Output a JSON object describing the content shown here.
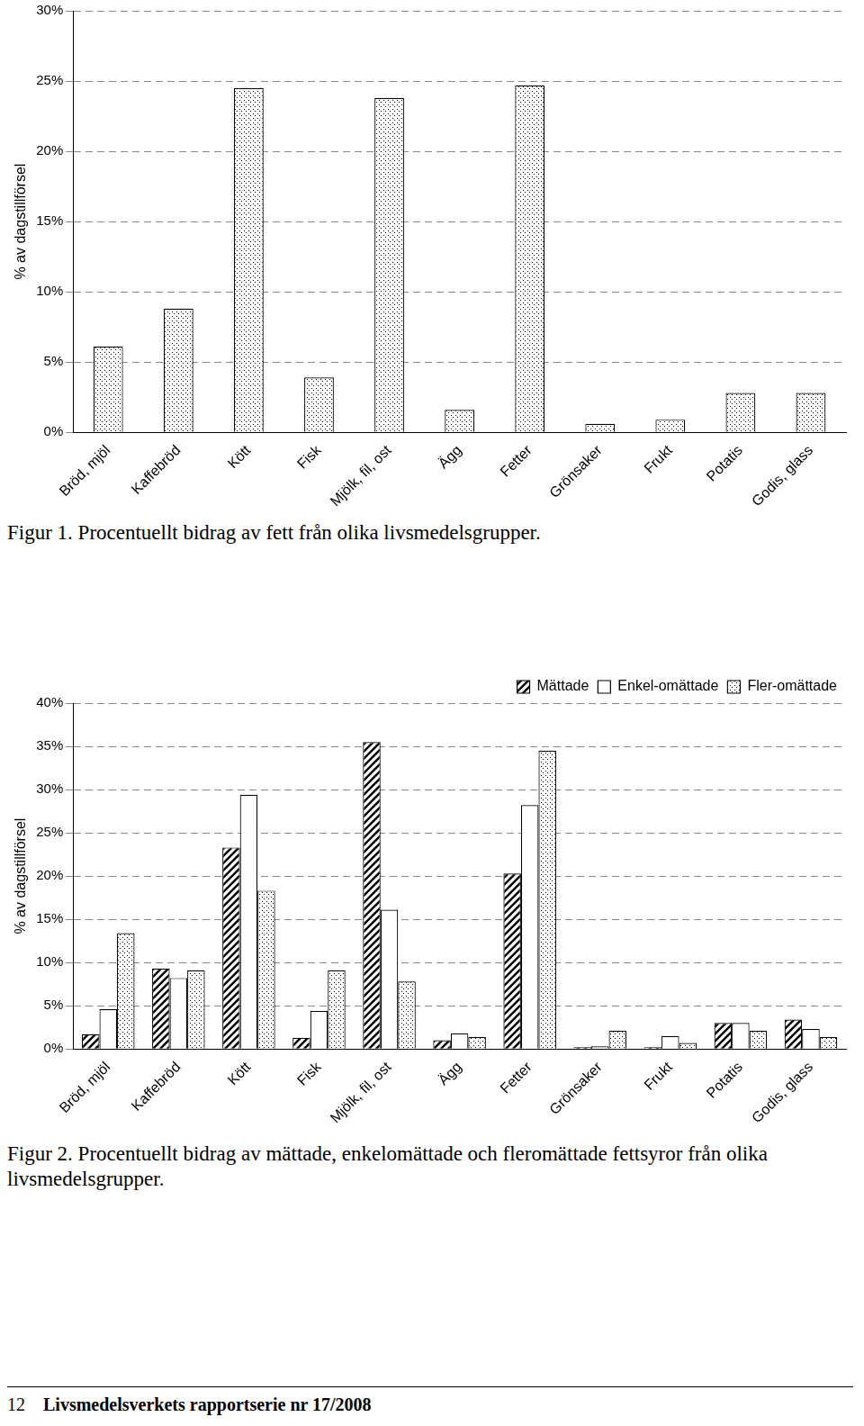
{
  "chart_data": [
    {
      "type": "bar",
      "title": "Figur 1. Procentuellt bidrag av fett från olika livsmedelsgrupper.",
      "y_label": "% av dagstillförsel",
      "categories": [
        "Bröd, mjöl",
        "Kaffebröd",
        "Kött",
        "Fisk",
        "Mjölk, fil, ost",
        "Ägg",
        "Fetter",
        "Grönsaker",
        "Frukt",
        "Potatis",
        "Godis, glass"
      ],
      "values": [
        6.1,
        8.8,
        24.5,
        3.9,
        23.8,
        1.6,
        24.7,
        0.6,
        0.9,
        2.8,
        2.8
      ],
      "color": "#000000",
      "ylim": [
        0,
        30
      ],
      "yticks": [
        {
          "value": 0,
          "label": "0%"
        },
        {
          "value": 5,
          "label": "5%"
        },
        {
          "value": 10,
          "label": "10%"
        },
        {
          "value": 15,
          "label": "15%"
        },
        {
          "value": 20,
          "label": "20%"
        },
        {
          "value": 25,
          "label": "25%"
        },
        {
          "value": 30,
          "label": "30%"
        }
      ],
      "grid": true
    },
    {
      "type": "bar",
      "title": "Figur 2. Procentuellt bidrag av mättade, enkelomättade och fleromättade fettsyror från olika livsmedelsgrupper.",
      "y_label": "% av dagstillförsel",
      "categories": [
        "Bröd, mjöl",
        "Kaffebröd",
        "Kött",
        "Fisk",
        "Mjölk, fil, ost",
        "Ägg",
        "Fetter",
        "Grönsaker",
        "Frukt",
        "Potatis",
        "Godis, glass"
      ],
      "series": [
        {
          "name": "Mättade",
          "color": "#000000",
          "values": [
            1.7,
            9.3,
            23.3,
            1.3,
            35.5,
            1.0,
            20.3,
            0.2,
            0.2,
            3.0,
            3.4
          ]
        },
        {
          "name": "Enkel-omättade",
          "color": "#ffffff",
          "values": [
            4.6,
            8.2,
            29.4,
            4.4,
            16.1,
            1.8,
            28.2,
            0.3,
            1.5,
            3.0,
            2.3
          ]
        },
        {
          "name": "Fler-omättade",
          "color": "#000000",
          "values": [
            13.4,
            9.1,
            18.3,
            9.1,
            7.8,
            1.4,
            34.5,
            2.1,
            0.7,
            2.1,
            1.4
          ]
        }
      ],
      "ylim": [
        0,
        40
      ],
      "yticks": [
        {
          "value": 0,
          "label": "0%"
        },
        {
          "value": 5,
          "label": "5%"
        },
        {
          "value": 10,
          "label": "10%"
        },
        {
          "value": 15,
          "label": "15%"
        },
        {
          "value": 20,
          "label": "20%"
        },
        {
          "value": 25,
          "label": "25%"
        },
        {
          "value": 30,
          "label": "30%"
        },
        {
          "value": 35,
          "label": "35%"
        },
        {
          "value": 40,
          "label": "40%"
        }
      ],
      "grid": true,
      "legend": "top-right"
    }
  ],
  "page": {
    "number": 12,
    "footer": "Livsmedelsverkets rapportserie nr 17/2008"
  }
}
